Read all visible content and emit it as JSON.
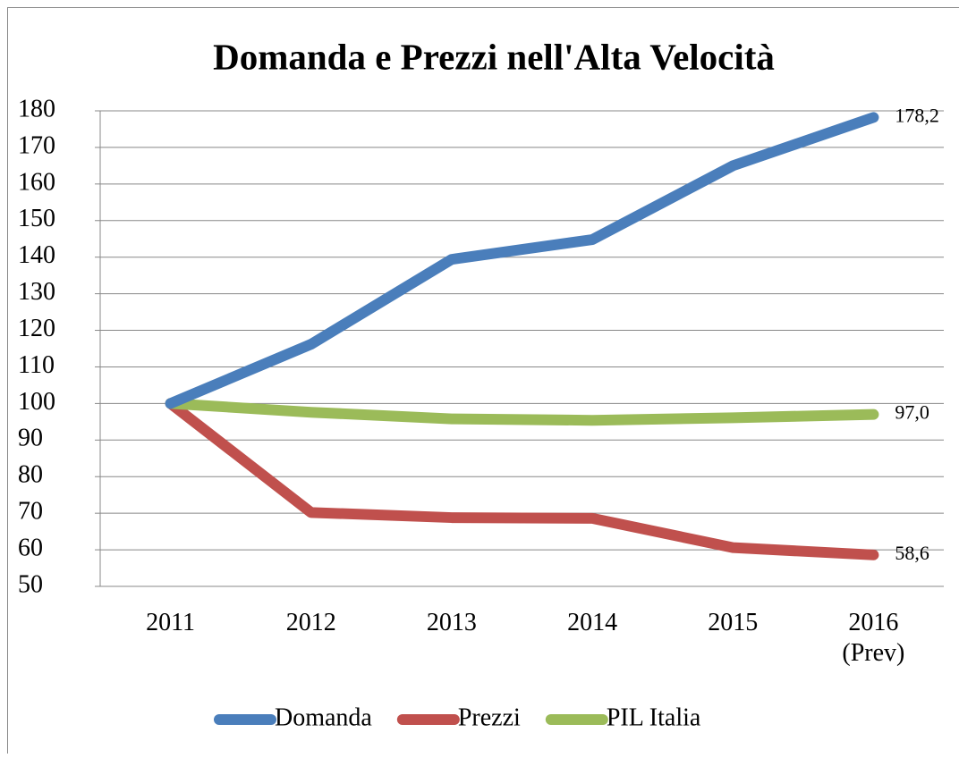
{
  "chart_data": {
    "type": "line",
    "title": "Domanda e Prezzi nell'Alta Velocità",
    "categories": [
      "2011",
      "2012",
      "2013",
      "2014",
      "2015",
      "2016 (Prev)"
    ],
    "series": [
      {
        "name": "Domanda",
        "color": "#4a7ebb",
        "values": [
          100,
          116.2,
          139.4,
          144.8,
          165,
          178.2
        ],
        "value_labels": [
          null,
          null,
          null,
          null,
          null,
          "178,2"
        ]
      },
      {
        "name": "Prezzi",
        "color": "#c0504d",
        "values": [
          100,
          70.2,
          68.8,
          68.6,
          60.6,
          58.6
        ],
        "value_labels": [
          null,
          null,
          null,
          null,
          null,
          "58,6"
        ]
      },
      {
        "name": "PIL Italia",
        "color": "#9bbb59",
        "values": [
          100,
          97.6,
          95.8,
          95.4,
          96.1,
          97.0
        ],
        "value_labels": [
          null,
          null,
          null,
          null,
          null,
          "97,0"
        ]
      }
    ],
    "ylim": [
      50,
      180
    ],
    "yticks": [
      50,
      60,
      70,
      80,
      90,
      100,
      110,
      120,
      130,
      140,
      150,
      160,
      170,
      180
    ],
    "grid": true,
    "legend": "bottom"
  }
}
